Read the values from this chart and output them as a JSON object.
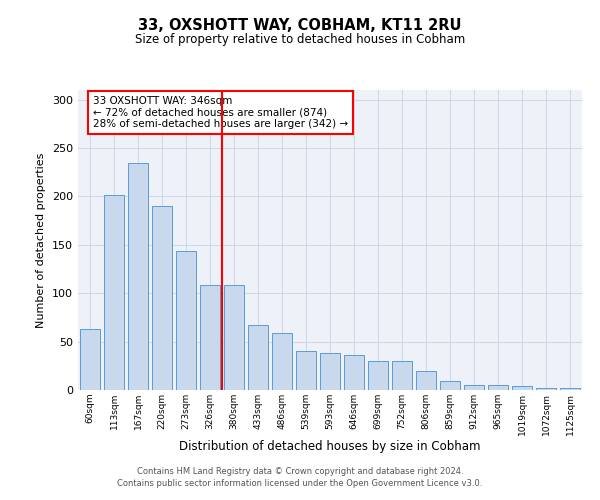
{
  "title1": "33, OXSHOTT WAY, COBHAM, KT11 2RU",
  "title2": "Size of property relative to detached houses in Cobham",
  "xlabel": "Distribution of detached houses by size in Cobham",
  "ylabel": "Number of detached properties",
  "categories": [
    "60sqm",
    "113sqm",
    "167sqm",
    "220sqm",
    "273sqm",
    "326sqm",
    "380sqm",
    "433sqm",
    "486sqm",
    "539sqm",
    "593sqm",
    "646sqm",
    "699sqm",
    "752sqm",
    "806sqm",
    "859sqm",
    "912sqm",
    "965sqm",
    "1019sqm",
    "1072sqm",
    "1125sqm"
  ],
  "values": [
    63,
    201,
    235,
    190,
    144,
    108,
    108,
    67,
    59,
    40,
    38,
    36,
    30,
    30,
    20,
    9,
    5,
    5,
    4,
    2,
    2
  ],
  "bar_color": "#c9d9ed",
  "bar_edge_color": "#5b9bd5",
  "red_line_x": 5.5,
  "annotation_text": "33 OXSHOTT WAY: 346sqm\n← 72% of detached houses are smaller (874)\n28% of semi-detached houses are larger (342) →",
  "annotation_box_color": "white",
  "annotation_box_edge_color": "red",
  "vline_color": "red",
  "grid_color": "#d0d8e8",
  "background_color": "#eef2f8",
  "footer1": "Contains HM Land Registry data © Crown copyright and database right 2024.",
  "footer2": "Contains public sector information licensed under the Open Government Licence v3.0.",
  "ylim": [
    0,
    310
  ],
  "yticks": [
    0,
    50,
    100,
    150,
    200,
    250,
    300
  ]
}
